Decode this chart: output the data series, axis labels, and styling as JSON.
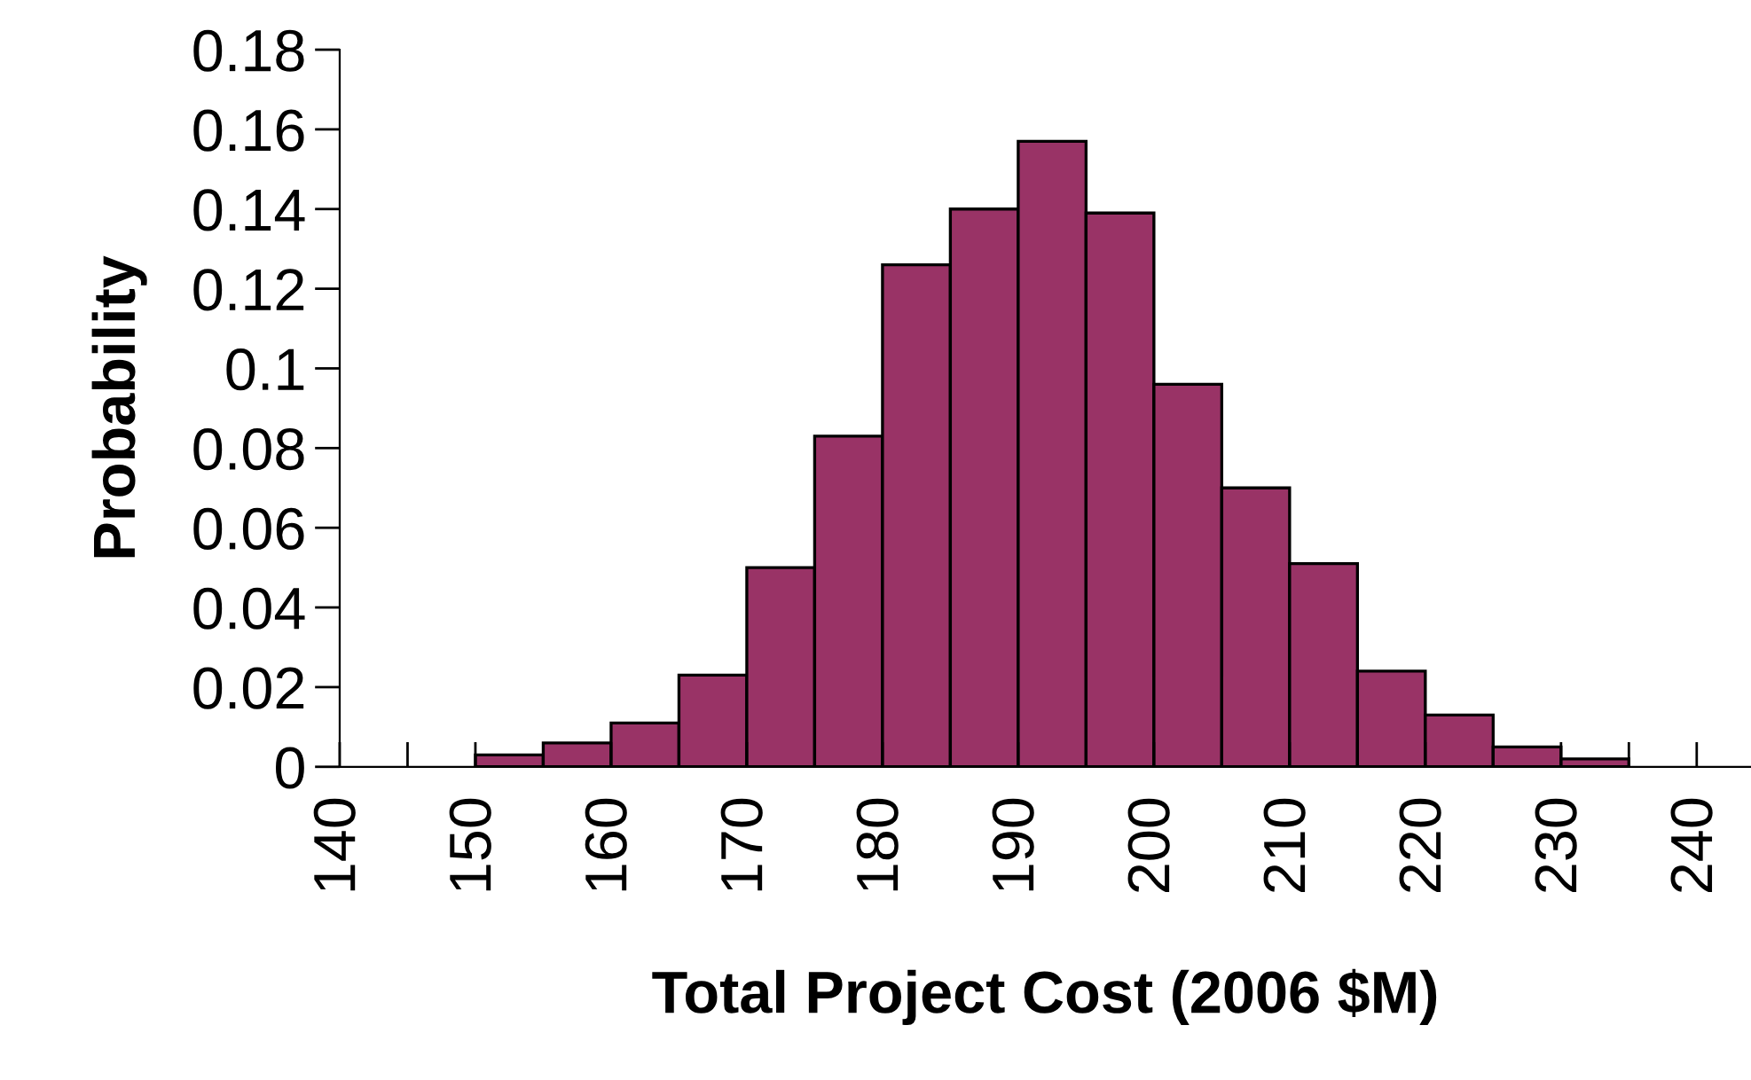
{
  "chart_data": {
    "type": "histogram",
    "xlabel": "Total Project Cost (2006 $M)",
    "ylabel": "Probability",
    "color": "#993366",
    "bins": [
      150,
      155,
      160,
      165,
      170,
      175,
      180,
      185,
      190,
      195,
      200,
      205,
      210,
      215,
      220,
      225,
      230,
      235
    ],
    "values": [
      0.003,
      0.006,
      0.011,
      0.023,
      0.05,
      0.083,
      0.126,
      0.14,
      0.157,
      0.139,
      0.096,
      0.07,
      0.051,
      0.024,
      0.013,
      0.005,
      0.002
    ],
    "xlim": [
      140,
      244
    ],
    "xticks": [
      140,
      {
        "value": 145,
        "label": null
      },
      150,
      {
        "value": 155,
        "label": null
      },
      160,
      {
        "value": 165,
        "label": null
      },
      170,
      {
        "value": 175,
        "label": null
      },
      180,
      {
        "value": 185,
        "label": null
      },
      190,
      {
        "value": 195,
        "label": null
      },
      200,
      {
        "value": 205,
        "label": null
      },
      210,
      {
        "value": 215,
        "label": null
      },
      220,
      {
        "value": 225,
        "label": null
      },
      230,
      {
        "value": 235,
        "label": null
      },
      240
    ],
    "ylim": [
      0,
      0.18
    ],
    "yticks": [
      0,
      0.02,
      0.04,
      0.06,
      0.08,
      0.1,
      0.12,
      0.14,
      0.16,
      0.18
    ],
    "grid": false,
    "legend": false
  }
}
